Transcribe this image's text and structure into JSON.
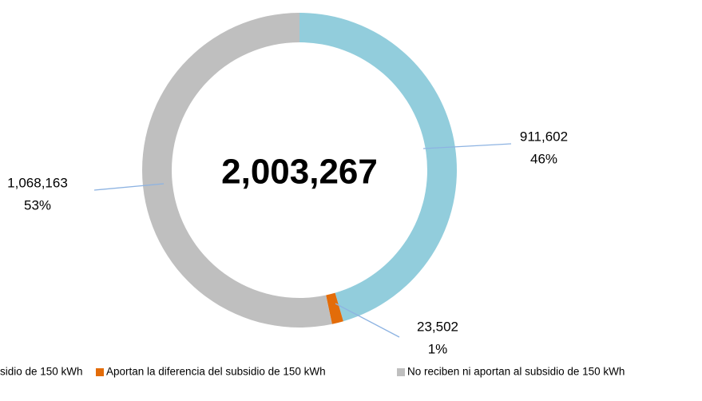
{
  "chart_data": {
    "type": "donut",
    "center_label": "2,003,267",
    "categories": [
      "sidio de 150 kWh",
      "Aportan la diferencia del subsidio de 150 kWh",
      "No reciben ni aportan al subsidio de 150 kWh"
    ],
    "values": [
      911602,
      23502,
      1068163
    ],
    "value_labels": [
      "911,602",
      "23,502",
      "1,068,163"
    ],
    "percent_labels": [
      "46%",
      "1%",
      "53%"
    ],
    "colors": [
      "#92cddc",
      "#e36c09",
      "#bfbfbf"
    ],
    "legend": "bottom"
  }
}
